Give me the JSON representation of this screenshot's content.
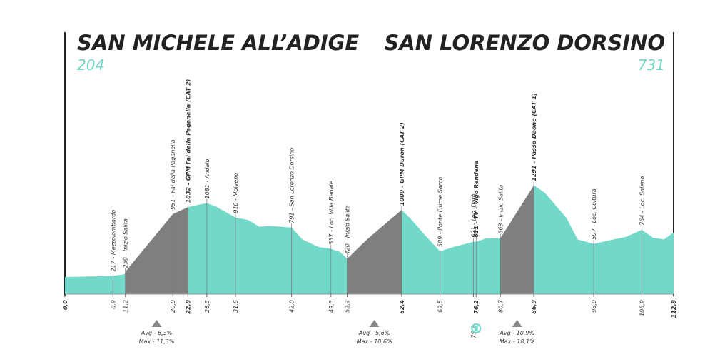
{
  "chart_data": {
    "type": "profile",
    "start": {
      "name": "SAN MICHELE ALL’ADIGE",
      "elevation": 204
    },
    "finish": {
      "name": "SAN LORENZO DORSINO",
      "elevation": 731
    },
    "color": "#72d8c8",
    "climb_color": "#7f7f7f",
    "highlight_color": "#e0162b",
    "xlim": [
      0,
      112.8
    ],
    "ylim": [
      0,
      1450
    ],
    "x": [
      0,
      5,
      8.9,
      11,
      11.2,
      11.4,
      20,
      22.8,
      24,
      26.3,
      28,
      31.6,
      34,
      36,
      38,
      42,
      44,
      47,
      49.3,
      51,
      52.3,
      56,
      60,
      62.4,
      64,
      67,
      69.5,
      72,
      75.7,
      76.2,
      78,
      80.7,
      86.9,
      89,
      93,
      95,
      98,
      101,
      104,
      106.9,
      109,
      111,
      112.8
    ],
    "values": [
      204,
      210,
      217,
      235,
      259,
      280,
      951,
      1032,
      1050,
      1081,
      1040,
      910,
      880,
      800,
      810,
      791,
      650,
      560,
      537,
      500,
      420,
      650,
      870,
      1000,
      900,
      680,
      509,
      560,
      621,
      621,
      660,
      663,
      1291,
      1200,
      900,
      650,
      597,
      640,
      680,
      764,
      670,
      650,
      731
    ],
    "xticks": [
      {
        "value": 0,
        "label": "0,0"
      },
      {
        "value": 8.9,
        "label": "8,9",
        "waypoint": "217 - Mezzolombardo"
      },
      {
        "value": 11.2,
        "label": "11,2",
        "waypoint": "259 - Inizio Salita"
      },
      {
        "value": 20,
        "label": "20,0",
        "waypoint": "951 - Fai della Paganella"
      },
      {
        "value": 22.8,
        "label": "22,8",
        "waypoint": "1032 - GPM Fai della Paganella (CAT 2)",
        "highlight": true
      },
      {
        "value": 26.3,
        "label": "26,3",
        "waypoint": "1081 - Andalo"
      },
      {
        "value": 31.6,
        "label": "31,6",
        "waypoint": "910 - Molveno"
      },
      {
        "value": 42,
        "label": "42,0",
        "waypoint": "791 - San Lorenzo Dorsino"
      },
      {
        "value": 49.3,
        "label": "49,3",
        "waypoint": "537 - Loc. Villa Banale"
      },
      {
        "value": 52.3,
        "label": "52,3",
        "waypoint": "420 - Inizio Salita"
      },
      {
        "value": 62.4,
        "label": "62,4",
        "waypoint": "1000 - GPM Duron (CAT 2)",
        "highlight": true
      },
      {
        "value": 69.5,
        "label": "69,5",
        "waypoint": "509 - Ponte Fiume Sarca"
      },
      {
        "value": 75.7,
        "label": "75,7",
        "waypoint": "621 - Loc. Darè"
      },
      {
        "value": 76.2,
        "label": "76,2",
        "waypoint": "621 - TV - Vigo Rendena",
        "highlight": true
      },
      {
        "value": 80.7,
        "label": "80,7",
        "waypoint": "663 - Inizio Salita"
      },
      {
        "value": 86.9,
        "label": "86,9",
        "waypoint": "1291 - Passo Daone (CAT 1)",
        "highlight": true
      },
      {
        "value": 98,
        "label": "98,0",
        "waypoint": "597 - Loc. Coltura"
      },
      {
        "value": 106.9,
        "label": "106,9",
        "waypoint": "764 - Loc. Saleno"
      },
      {
        "value": 112.8,
        "label": "112,8"
      }
    ],
    "climbs": [
      {
        "km": [
          11.2,
          22.8
        ],
        "avg": "Avg - 6,3%",
        "max": "Max - 11,3%"
      },
      {
        "km": [
          52.3,
          62.4
        ],
        "avg": "Avg - 5,6%",
        "max": "Max - 10,6%"
      },
      {
        "km": [
          80.7,
          86.9
        ],
        "avg": "Avg - 10,9%",
        "max": "Max - 18,1%"
      }
    ]
  }
}
